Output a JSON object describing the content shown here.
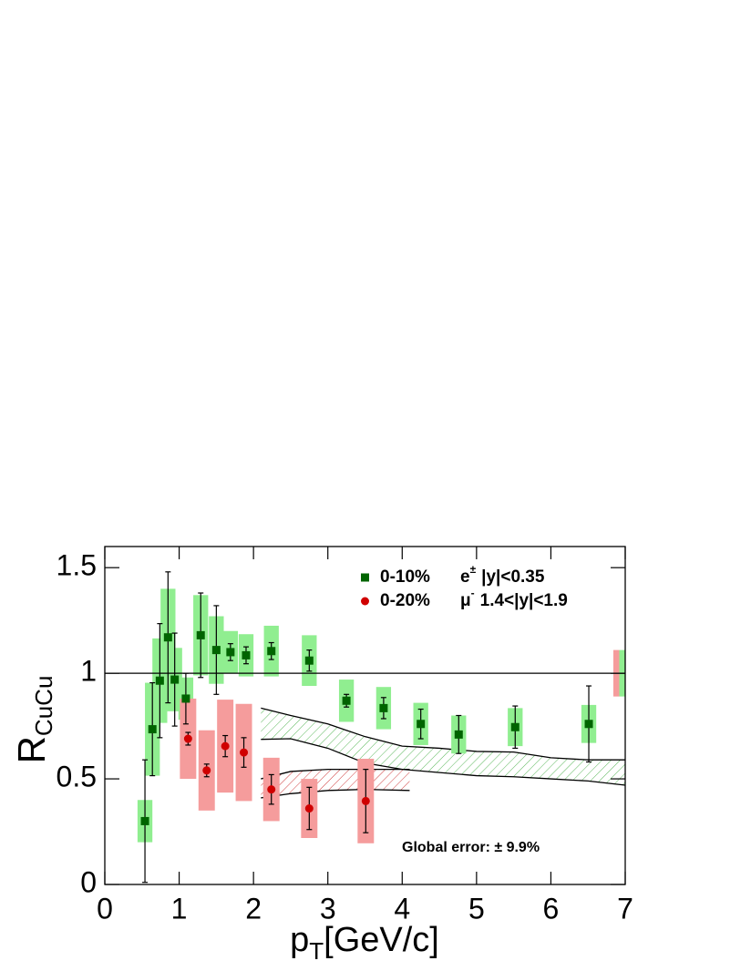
{
  "chart_data": {
    "type": "scatter",
    "ylabel": "R",
    "ylabel_sub": "CuCu",
    "xlabel": "p",
    "xlabel_sub": "T",
    "xlabel_unit": "[GeV/c]",
    "xlim": [
      0,
      7
    ],
    "ylim": [
      0,
      1.6
    ],
    "xticks": [
      0,
      1,
      2,
      3,
      4,
      5,
      6,
      7
    ],
    "yticks": [
      0,
      {
        "value": 0.5,
        "label": "0.5"
      },
      1,
      {
        "value": 1.5,
        "label": "1.5"
      }
    ],
    "reference_line": 1,
    "series": [
      {
        "centrality": "0-10%",
        "particle": "e",
        "charge": "±",
        "range": "|y|<0.35",
        "marker": "square",
        "color": "#006400",
        "box_color": "#90ee90",
        "box_width": 0.2,
        "x": [
          0.54,
          0.64,
          0.74,
          0.85,
          0.94,
          1.09,
          1.29,
          1.5,
          1.69,
          1.9,
          2.24,
          2.75,
          3.25,
          3.75,
          4.25,
          4.76,
          5.52,
          6.51
        ],
        "values": [
          0.3,
          0.735,
          0.965,
          1.17,
          0.97,
          0.88,
          1.18,
          1.11,
          1.1,
          1.085,
          1.105,
          1.06,
          0.87,
          0.835,
          0.76,
          0.71,
          0.745,
          0.76
        ],
        "stat_errors": [
          0.29,
          0.22,
          0.27,
          0.31,
          0.22,
          0.12,
          0.2,
          0.21,
          0.04,
          0.04,
          0.04,
          0.05,
          0.03,
          0.05,
          0.07,
          0.09,
          0.1,
          0.18
        ],
        "sys_errors": [
          0.1,
          0.22,
          0.2,
          0.23,
          0.15,
          0.1,
          0.19,
          0.16,
          0.1,
          0.1,
          0.12,
          0.12,
          0.1,
          0.1,
          0.1,
          0.09,
          0.09,
          0.09
        ]
      },
      {
        "centrality": "0-20%",
        "particle": "μ",
        "charge": "-",
        "range": "1.4<|y|<1.9",
        "marker": "circle",
        "color": "#d00000",
        "box_color": "#f59c9c",
        "box_width": 0.22,
        "x": [
          1.12,
          1.37,
          1.62,
          1.87,
          2.24,
          2.75,
          3.51
        ],
        "values": [
          0.69,
          0.54,
          0.655,
          0.625,
          0.45,
          0.36,
          0.395
        ],
        "stat_errors": [
          0.03,
          0.03,
          0.05,
          0.07,
          0.07,
          0.1,
          0.15
        ],
        "sys_errors": [
          0.19,
          0.19,
          0.22,
          0.23,
          0.15,
          0.14,
          0.2
        ]
      }
    ],
    "bands": [
      {
        "color": "#5cb85c",
        "x": [
          2.1,
          2.5,
          3.0,
          3.5,
          4.0,
          4.5,
          5.0,
          5.5,
          6.0,
          6.5,
          7.0
        ],
        "upper": [
          0.835,
          0.8,
          0.76,
          0.7,
          0.655,
          0.645,
          0.63,
          0.627,
          0.6,
          0.59,
          0.59
        ],
        "lower": [
          0.687,
          0.69,
          0.645,
          0.575,
          0.545,
          0.53,
          0.515,
          0.51,
          0.5,
          0.49,
          0.47
        ]
      },
      {
        "color": "#d04040",
        "x": [
          2.1,
          2.5,
          3.0,
          3.5,
          4.1
        ],
        "upper": [
          0.5,
          0.535,
          0.545,
          0.545,
          0.545
        ],
        "lower": [
          0.41,
          0.43,
          0.445,
          0.45,
          0.445
        ]
      }
    ],
    "global_error": {
      "text": "Global error:  ± 9.9%",
      "center": 1,
      "half_height": 0.11,
      "boxes": [
        {
          "color": "#f59c9c",
          "x": [
            6.84,
            6.92
          ]
        },
        {
          "color": "#90ee90",
          "x": [
            6.92,
            7.0
          ]
        }
      ]
    }
  }
}
